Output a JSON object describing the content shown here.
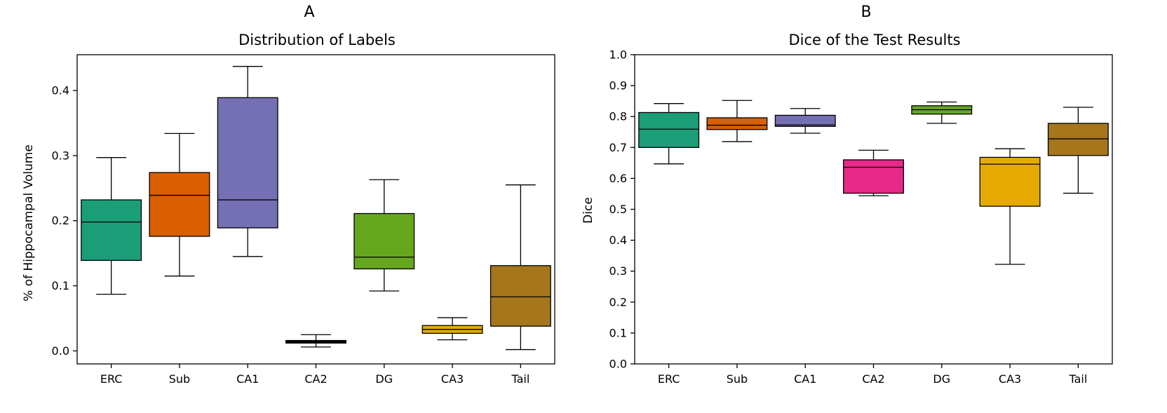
{
  "figure": {
    "panels": [
      "A",
      "B"
    ]
  },
  "chart_data": [
    {
      "type": "box",
      "panel_label": "A",
      "title": "Distribution of Labels",
      "xlabel": "",
      "ylabel": "% of Hippocampal Volume",
      "ylim": [
        -0.02,
        0.455
      ],
      "yticks": [
        0.0,
        0.1,
        0.2,
        0.3,
        0.4
      ],
      "ytick_labels": [
        "0.0",
        "0.1",
        "0.2",
        "0.3",
        "0.4"
      ],
      "categories": [
        "ERC",
        "Sub",
        "CA1",
        "CA2",
        "DG",
        "CA3",
        "Tail"
      ],
      "colors": [
        "#1b9e77",
        "#d95f02",
        "#7570b3",
        "#111111",
        "#66a61e",
        "#e6ab02",
        "#a6761d"
      ],
      "boxes": [
        {
          "label": "ERC",
          "whisker_low": 0.087,
          "q1": 0.139,
          "median": 0.198,
          "q3": 0.232,
          "whisker_high": 0.297
        },
        {
          "label": "Sub",
          "whisker_low": 0.115,
          "q1": 0.176,
          "median": 0.239,
          "q3": 0.274,
          "whisker_high": 0.334
        },
        {
          "label": "CA1",
          "whisker_low": 0.145,
          "q1": 0.189,
          "median": 0.232,
          "q3": 0.389,
          "whisker_high": 0.437
        },
        {
          "label": "CA2",
          "whisker_low": 0.006,
          "q1": 0.012,
          "median": 0.014,
          "q3": 0.016,
          "whisker_high": 0.025
        },
        {
          "label": "DG",
          "whisker_low": 0.092,
          "q1": 0.126,
          "median": 0.144,
          "q3": 0.211,
          "whisker_high": 0.263
        },
        {
          "label": "CA3",
          "whisker_low": 0.017,
          "q1": 0.027,
          "median": 0.033,
          "q3": 0.039,
          "whisker_high": 0.051
        },
        {
          "label": "Tail",
          "whisker_low": 0.002,
          "q1": 0.038,
          "median": 0.083,
          "q3": 0.131,
          "whisker_high": 0.255
        }
      ]
    },
    {
      "type": "box",
      "panel_label": "B",
      "title": "Dice of the Test Results",
      "xlabel": "",
      "ylabel": "Dice",
      "ylim": [
        0.0,
        1.0
      ],
      "yticks": [
        0.0,
        0.1,
        0.2,
        0.3,
        0.4,
        0.5,
        0.6,
        0.7,
        0.8,
        0.9,
        1.0
      ],
      "ytick_labels": [
        "0.0",
        "0.1",
        "0.2",
        "0.3",
        "0.4",
        "0.5",
        "0.6",
        "0.7",
        "0.8",
        "0.9",
        "1.0"
      ],
      "categories": [
        "ERC",
        "Sub",
        "CA1",
        "CA2",
        "DG",
        "CA3",
        "Tail"
      ],
      "colors": [
        "#1b9e77",
        "#d95f02",
        "#7570b3",
        "#e7298a",
        "#66a61e",
        "#e6ab02",
        "#a6761d"
      ],
      "boxes": [
        {
          "label": "ERC",
          "whisker_low": 0.647,
          "q1": 0.7,
          "median": 0.759,
          "q3": 0.813,
          "whisker_high": 0.842
        },
        {
          "label": "Sub",
          "whisker_low": 0.719,
          "q1": 0.758,
          "median": 0.772,
          "q3": 0.796,
          "whisker_high": 0.852
        },
        {
          "label": "CA1",
          "whisker_low": 0.746,
          "q1": 0.768,
          "median": 0.773,
          "q3": 0.804,
          "whisker_high": 0.826
        },
        {
          "label": "CA2",
          "whisker_low": 0.544,
          "q1": 0.552,
          "median": 0.636,
          "q3": 0.66,
          "whisker_high": 0.691
        },
        {
          "label": "DG",
          "whisker_low": 0.778,
          "q1": 0.808,
          "median": 0.822,
          "q3": 0.835,
          "whisker_high": 0.847
        },
        {
          "label": "CA3",
          "whisker_low": 0.322,
          "q1": 0.51,
          "median": 0.646,
          "q3": 0.668,
          "whisker_high": 0.696
        },
        {
          "label": "Tail",
          "whisker_low": 0.552,
          "q1": 0.674,
          "median": 0.728,
          "q3": 0.778,
          "whisker_high": 0.83
        }
      ]
    }
  ]
}
